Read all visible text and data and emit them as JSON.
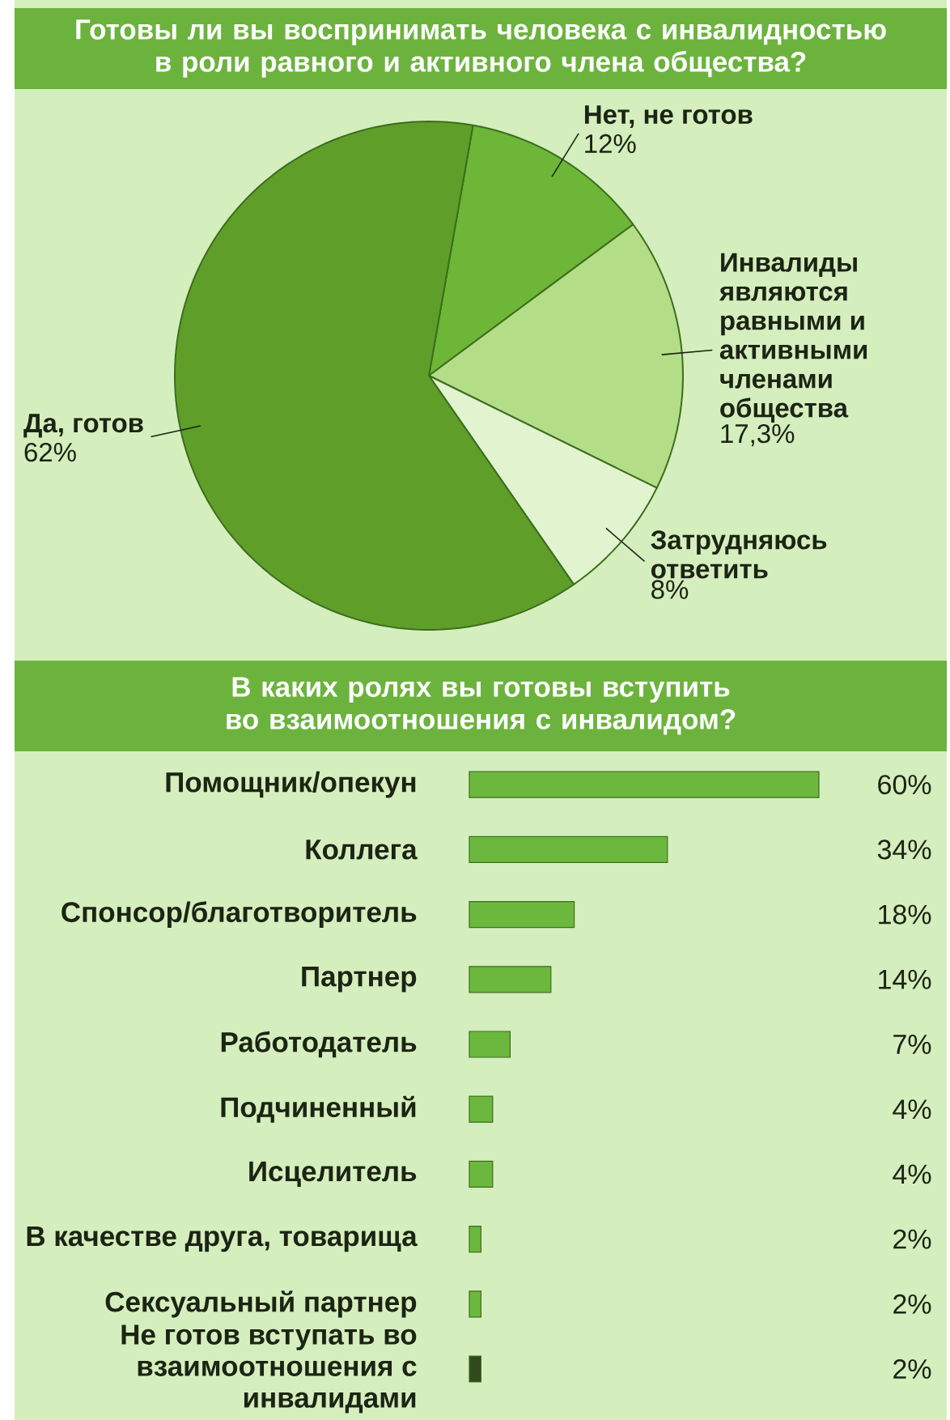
{
  "chart_data": [
    {
      "type": "pie",
      "title": "Готовы ли вы воспринимать человека с инвалидностью в роли равного и активного члена общества?",
      "categories": [
        "Нет, не готов",
        "Инвалиды являются равными и активными членами общества",
        "Затрудняюсь ответить",
        "Да, готов"
      ],
      "values": [
        12,
        17.3,
        8,
        62
      ],
      "value_labels": [
        "12%",
        "17,3%",
        "8%",
        "62%"
      ],
      "colors": [
        "#6db637",
        "#b3dd87",
        "#e2f4cf",
        "#5f9f29"
      ]
    },
    {
      "type": "bar",
      "orientation": "horizontal",
      "tick_labels": "y",
      "title": "В каких ролях вы готовы вступить во взаимоотношения с инвалидом?",
      "categories": [
        "Помощник/опекун",
        "Коллега",
        "Спонсор/благотворитель",
        "Партнер",
        "Работодатель",
        "Подчиненный",
        "Исцелитель",
        "В качестве друга, товарища",
        "Сексуальный партнер",
        "Не готов вступать во взаимоотношения с инвалидами"
      ],
      "values": [
        60,
        34,
        18,
        14,
        7,
        4,
        4,
        2,
        2,
        2
      ],
      "value_labels": [
        "60%",
        "34%",
        "18%",
        "14%",
        "7%",
        "4%",
        "4%",
        "2%",
        "2%",
        "2%"
      ],
      "colors": [
        "#6cb83e",
        "#6cb83e",
        "#6cb83e",
        "#6cb83e",
        "#6cb83e",
        "#6cb83e",
        "#6cb83e",
        "#6cb83e",
        "#6cb83e",
        "#2f4a1d"
      ]
    }
  ]
}
